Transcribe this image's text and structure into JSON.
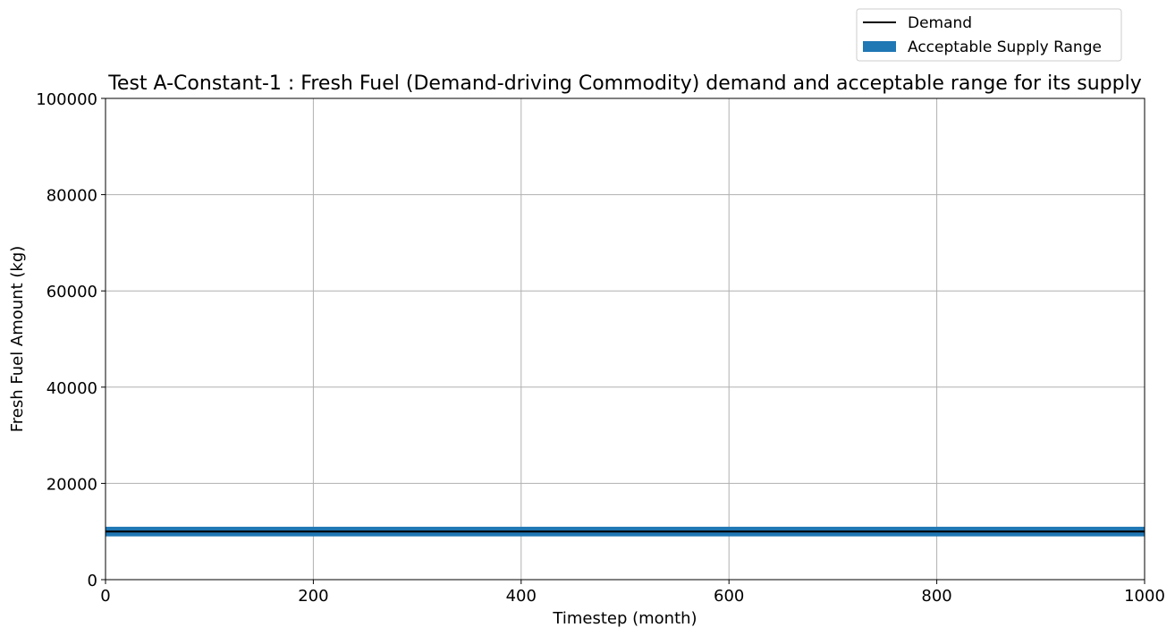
{
  "chart_data": {
    "type": "line",
    "title": "Test A-Constant-1 : Fresh Fuel (Demand-driving Commodity) demand and acceptable range for its supply",
    "xlabel": "Timestep (month)",
    "ylabel": "Fresh Fuel Amount (kg)",
    "xlim": [
      0,
      1000
    ],
    "ylim": [
      0,
      100000
    ],
    "xticks": [
      0,
      200,
      400,
      600,
      800,
      1000
    ],
    "yticks": [
      0,
      20000,
      40000,
      60000,
      80000,
      100000
    ],
    "grid": true,
    "legend_position": "top-right",
    "series": [
      {
        "name": "Demand",
        "type": "line",
        "color": "#000000",
        "x": [
          0,
          1000
        ],
        "y": [
          10000,
          10000
        ]
      },
      {
        "name": "Acceptable Supply Range",
        "type": "area",
        "color": "#1f77b4",
        "x": [
          0,
          1000
        ],
        "y_lower": [
          9000,
          9000
        ],
        "y_upper": [
          11000,
          11000
        ]
      }
    ]
  }
}
